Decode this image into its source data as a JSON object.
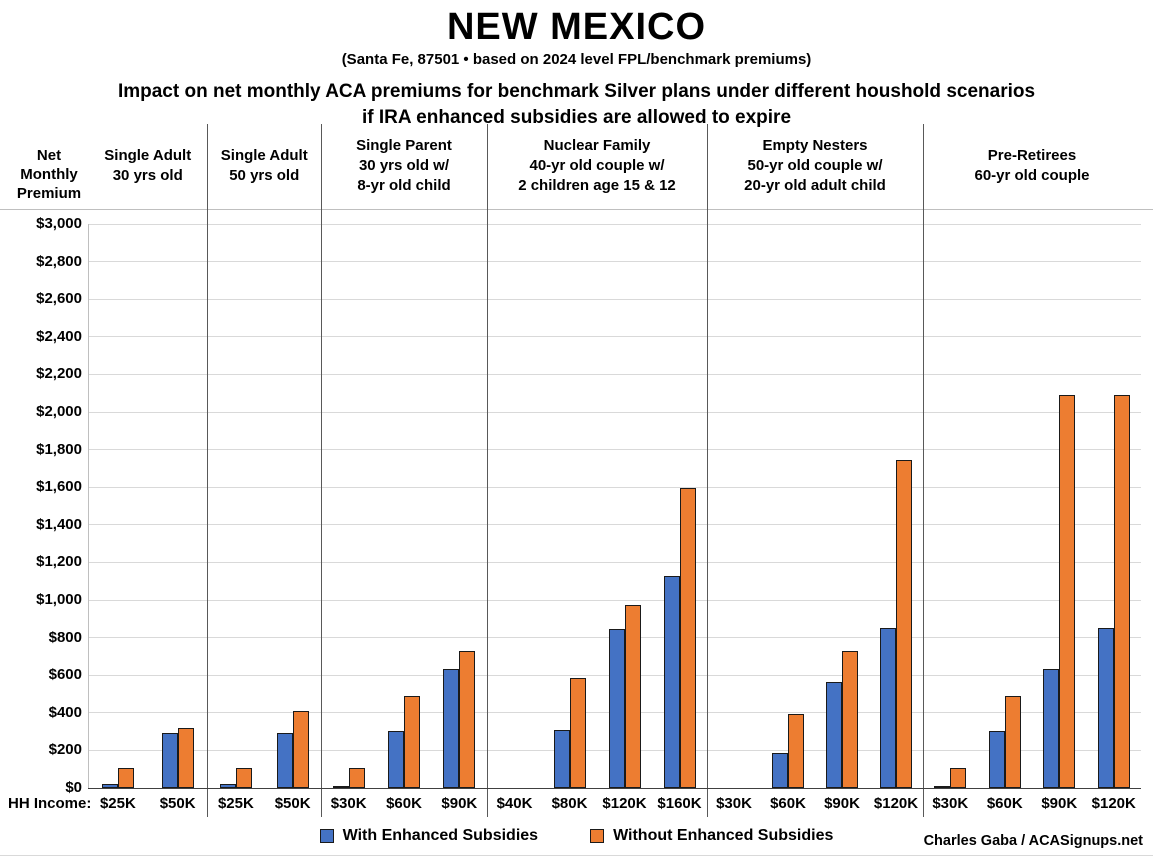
{
  "header": {
    "title": "NEW MEXICO",
    "subtitle": "(Santa Fe, 87501 • based on 2024 level FPL/benchmark premiums)",
    "heading_line1": "Impact on net monthly ACA premiums for benchmark Silver plans under different houshold scenarios",
    "heading_line2": "if IRA enhanced subsidies are allowed to expire"
  },
  "axis": {
    "y_title_lines": [
      "Net",
      "Monthly",
      "Premium"
    ],
    "hh_income_label": "HH Income:"
  },
  "footer": {
    "credit": "Charles Gaba / ACASignups.net"
  },
  "style": {
    "gridline": "#d9d9d9",
    "separator": "#595959",
    "axis_line": "#bfbfbf",
    "baseline": "#404040",
    "bar_border": "#1a1a1a",
    "background": "#ffffff",
    "text": "#000000"
  },
  "chart_data": {
    "type": "bar",
    "title": "Impact on net monthly ACA premiums for benchmark Silver plans under different houshold scenarios if IRA enhanced subsidies are allowed to expire",
    "subtitle": "NEW MEXICO (Santa Fe, 87501 • based on 2024 level FPL/benchmark premiums)",
    "ylabel": "Net Monthly Premium",
    "xlabel": "HH Income",
    "ylim": [
      0,
      3000
    ],
    "ytick_step": 200,
    "grid": true,
    "legend_position": "bottom",
    "ytick_values": [
      3000,
      2800,
      2600,
      2400,
      2200,
      2000,
      1800,
      1600,
      1400,
      1200,
      1000,
      800,
      600,
      400,
      200,
      0
    ],
    "ytick_labels": [
      "$3,000",
      "$2,800",
      "$2,600",
      "$2,400",
      "$2,200",
      "$2,000",
      "$1,800",
      "$1,600",
      "$1,400",
      "$1,200",
      "$1,000",
      "$800",
      "$600",
      "$400",
      "$200",
      "$0"
    ],
    "series": [
      {
        "name": "With Enhanced Subsidies",
        "color": "#4472C4"
      },
      {
        "name": "Without Enhanced Subsidies",
        "color": "#ED7D31"
      }
    ],
    "groups": [
      {
        "header": [
          "Single Adult",
          "30 yrs old"
        ],
        "incomes": [
          "$25K",
          "$50K"
        ],
        "with_enhanced": [
          20,
          295
        ],
        "without_enhanced": [
          105,
          320
        ]
      },
      {
        "header": [
          "Single Adult",
          "50 yrs old"
        ],
        "incomes": [
          "$25K",
          "$50K"
        ],
        "with_enhanced": [
          20,
          295
        ],
        "without_enhanced": [
          105,
          410
        ]
      },
      {
        "header": [
          "Single Parent",
          "30 yrs old w/",
          "8-yr old child"
        ],
        "incomes": [
          "$30K",
          "$60K",
          "$90K"
        ],
        "with_enhanced": [
          10,
          305,
          635
        ],
        "without_enhanced": [
          105,
          490,
          730
        ]
      },
      {
        "header": [
          "Nuclear Family",
          "40-yr old couple w/",
          "2 children age 15 & 12"
        ],
        "incomes": [
          "$40K",
          "$80K",
          "$120K",
          "$160K"
        ],
        "with_enhanced": [
          0,
          310,
          845,
          1130
        ],
        "without_enhanced": [
          0,
          585,
          975,
          1595
        ]
      },
      {
        "header": [
          "Empty Nesters",
          "50-yr old couple w/",
          "20-yr old adult child"
        ],
        "incomes": [
          "$30K",
          "$60K",
          "$90K",
          "$120K"
        ],
        "with_enhanced": [
          0,
          185,
          565,
          850
        ],
        "without_enhanced": [
          0,
          395,
          730,
          1745
        ]
      },
      {
        "header": [
          "Pre-Retirees",
          "60-yr old couple"
        ],
        "incomes": [
          "$30K",
          "$60K",
          "$90K",
          "$120K"
        ],
        "with_enhanced": [
          10,
          305,
          635,
          850
        ],
        "without_enhanced": [
          105,
          490,
          2090,
          2090
        ]
      }
    ]
  }
}
